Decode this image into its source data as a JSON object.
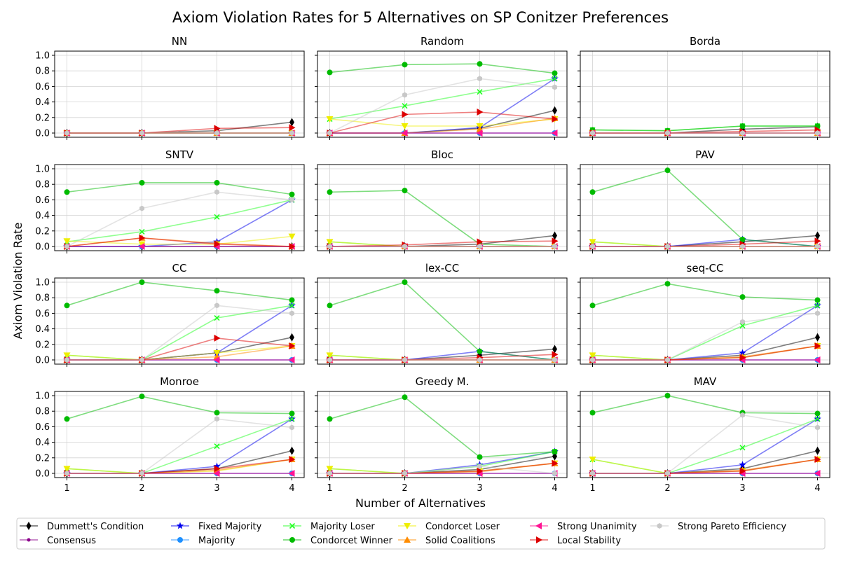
{
  "figure": {
    "title": "Axiom Violation Rates for 5 Alternatives on SP Conitzer Preferences",
    "xlabel": "Number of Alternatives",
    "ylabel": "Axiom Violation Rate"
  },
  "chart_data": {
    "type": "line",
    "x": [
      1,
      2,
      3,
      4
    ],
    "ylim": [
      0,
      1.0
    ],
    "yticks": [
      "0.0",
      "0.2",
      "0.4",
      "0.6",
      "0.8",
      "1.0"
    ],
    "xticks": [
      "1",
      "2",
      "3",
      "4"
    ],
    "grid": true,
    "legend_position": "bottom",
    "series_styles": [
      {
        "name": "Dummett's Condition",
        "color": "#000000",
        "marker": "diamond"
      },
      {
        "name": "Consensus",
        "color": "#8B008B",
        "marker": "dot"
      },
      {
        "name": "Fixed Majority",
        "color": "#0000EE",
        "marker": "star"
      },
      {
        "name": "Majority",
        "color": "#1E90FF",
        "marker": "circle"
      },
      {
        "name": "Majority Loser",
        "color": "#22FF22",
        "marker": "x"
      },
      {
        "name": "Condorcet Winner",
        "color": "#00BB00",
        "marker": "circle"
      },
      {
        "name": "Condorcet Loser",
        "color": "#EEEE00",
        "marker": "triangle-down"
      },
      {
        "name": "Solid Coalitions",
        "color": "#FF8C00",
        "marker": "triangle-up"
      },
      {
        "name": "Strong Unanimity",
        "color": "#FF1493",
        "marker": "triangle-left"
      },
      {
        "name": "Local Stability",
        "color": "#DD0000",
        "marker": "triangle-right"
      },
      {
        "name": "Strong Pareto Efficiency",
        "color": "#C8C8C8",
        "marker": "hexagon"
      }
    ],
    "panels": [
      {
        "title": "NN",
        "series": [
          [
            0,
            0,
            0.03,
            0.14
          ],
          [
            0,
            0,
            0,
            0
          ],
          [
            0,
            0,
            0,
            0
          ],
          [
            0,
            0,
            0,
            0
          ],
          [
            0,
            0,
            0,
            0
          ],
          [
            0,
            0,
            0,
            0
          ],
          [
            0,
            0,
            0,
            0
          ],
          [
            0,
            0,
            0,
            0
          ],
          [
            0,
            0,
            0,
            0
          ],
          [
            0,
            0,
            0.06,
            0.07
          ],
          [
            0,
            0,
            0,
            0
          ]
        ]
      },
      {
        "title": "Random",
        "series": [
          [
            0,
            0,
            0.06,
            0.29
          ],
          [
            0,
            0,
            0,
            0
          ],
          [
            0,
            0,
            0.07,
            0.7
          ],
          [
            0,
            0,
            0,
            0
          ],
          [
            0.18,
            0.35,
            0.53,
            0.7
          ],
          [
            0.78,
            0.88,
            0.89,
            0.77
          ],
          [
            0.18,
            0.09,
            0.09,
            0.18
          ],
          [
            0,
            0,
            0.05,
            0.19
          ],
          [
            0,
            0,
            0,
            0
          ],
          [
            0,
            0.24,
            0.27,
            0.18
          ],
          [
            0,
            0.49,
            0.7,
            0.59
          ]
        ]
      },
      {
        "title": "Borda",
        "series": [
          [
            0,
            0,
            0.05,
            0.08
          ],
          [
            0,
            0,
            0,
            0
          ],
          [
            0,
            0,
            0,
            0
          ],
          [
            0,
            0,
            0,
            0
          ],
          [
            0.04,
            0.03,
            0.09,
            0.09
          ],
          [
            0.04,
            0.03,
            0.09,
            0.09
          ],
          [
            0,
            0,
            0,
            0
          ],
          [
            0,
            0,
            0,
            0
          ],
          [
            0,
            0,
            0,
            0
          ],
          [
            0,
            0,
            0.02,
            0.04
          ],
          [
            0,
            0,
            0,
            0
          ]
        ]
      },
      {
        "title": "SNTV",
        "series": [
          [
            0,
            0,
            0,
            0
          ],
          [
            0,
            0,
            0,
            0
          ],
          [
            0,
            0,
            0.06,
            0.6
          ],
          [
            0,
            0,
            0,
            0
          ],
          [
            0.06,
            0.19,
            0.38,
            0.6
          ],
          [
            0.7,
            0.82,
            0.82,
            0.67
          ],
          [
            0.07,
            0.03,
            0.03,
            0.13
          ],
          [
            0,
            0.11,
            0.04,
            0
          ],
          [
            0,
            0,
            0,
            0
          ],
          [
            0,
            0.11,
            0.03,
            0
          ],
          [
            0,
            0.49,
            0.7,
            0.6
          ]
        ]
      },
      {
        "title": "Bloc",
        "series": [
          [
            0,
            0,
            0.03,
            0.14
          ],
          [
            0,
            0,
            0,
            0
          ],
          [
            0,
            0,
            0,
            0
          ],
          [
            0,
            0,
            0,
            0
          ],
          [
            0.06,
            0,
            0,
            0
          ],
          [
            0.7,
            0.72,
            0.03,
            0
          ],
          [
            0.06,
            0,
            0,
            0
          ],
          [
            0,
            0,
            0,
            0
          ],
          [
            0,
            0,
            0,
            0
          ],
          [
            0,
            0.02,
            0.06,
            0.07
          ],
          [
            0,
            0,
            0,
            0
          ]
        ]
      },
      {
        "title": "PAV",
        "series": [
          [
            0,
            0,
            0.06,
            0.14
          ],
          [
            0,
            0,
            0,
            0
          ],
          [
            0,
            0,
            0.09,
            0
          ],
          [
            0,
            0,
            0,
            0
          ],
          [
            0.06,
            0,
            0,
            0
          ],
          [
            0.7,
            0.98,
            0.09,
            0
          ],
          [
            0.06,
            0,
            0,
            0
          ],
          [
            0,
            0,
            0,
            0
          ],
          [
            0,
            0,
            0,
            0
          ],
          [
            0,
            0,
            0.03,
            0.07
          ],
          [
            0,
            0,
            0,
            0
          ]
        ]
      },
      {
        "title": "CC",
        "series": [
          [
            0,
            0,
            0.09,
            0.29
          ],
          [
            0,
            0,
            0,
            0
          ],
          [
            0,
            0,
            0.09,
            0.7
          ],
          [
            0,
            0,
            0,
            0
          ],
          [
            0.06,
            0,
            0.54,
            0.7
          ],
          [
            0.7,
            1.0,
            0.89,
            0.77
          ],
          [
            0.06,
            0,
            0.09,
            0.18
          ],
          [
            0,
            0,
            0.04,
            0.18
          ],
          [
            0,
            0,
            0,
            0
          ],
          [
            0,
            0,
            0.28,
            0.18
          ],
          [
            0,
            0,
            0.7,
            0.6
          ]
        ]
      },
      {
        "title": "lex-CC",
        "series": [
          [
            0,
            0,
            0.06,
            0.14
          ],
          [
            0,
            0,
            0,
            0
          ],
          [
            0,
            0,
            0.11,
            0
          ],
          [
            0,
            0,
            0,
            0
          ],
          [
            0.06,
            0,
            0,
            0
          ],
          [
            0.7,
            1.0,
            0.11,
            0
          ],
          [
            0.06,
            0,
            0,
            0
          ],
          [
            0,
            0,
            0,
            0
          ],
          [
            0,
            0,
            0,
            0
          ],
          [
            0,
            0,
            0.03,
            0.07
          ],
          [
            0,
            0,
            0,
            0
          ]
        ]
      },
      {
        "title": "seq-CC",
        "series": [
          [
            0,
            0,
            0.06,
            0.29
          ],
          [
            0,
            0,
            0,
            0
          ],
          [
            0,
            0,
            0.09,
            0.7
          ],
          [
            0,
            0,
            0,
            0
          ],
          [
            0.06,
            0,
            0.44,
            0.7
          ],
          [
            0.7,
            0.98,
            0.81,
            0.77
          ],
          [
            0.06,
            0,
            0.03,
            0.18
          ],
          [
            0,
            0,
            0.04,
            0.18
          ],
          [
            0,
            0,
            0,
            0
          ],
          [
            0,
            0,
            0.03,
            0.18
          ],
          [
            0,
            0,
            0.49,
            0.6
          ]
        ]
      },
      {
        "title": "Monroe",
        "series": [
          [
            0,
            0,
            0.06,
            0.29
          ],
          [
            0,
            0,
            0,
            0
          ],
          [
            0,
            0,
            0.09,
            0.7
          ],
          [
            0,
            0,
            0,
            0
          ],
          [
            0.06,
            0,
            0.35,
            0.7
          ],
          [
            0.7,
            0.99,
            0.78,
            0.77
          ],
          [
            0.06,
            0,
            0.03,
            0.18
          ],
          [
            0,
            0,
            0.04,
            0.18
          ],
          [
            0,
            0,
            0,
            0
          ],
          [
            0,
            0,
            0.06,
            0.18
          ],
          [
            0,
            0,
            0.7,
            0.59
          ]
        ]
      },
      {
        "title": "Greedy M.",
        "series": [
          [
            0,
            0,
            0.05,
            0.22
          ],
          [
            0,
            0,
            0,
            0
          ],
          [
            0,
            0,
            0.11,
            0.28
          ],
          [
            0,
            0,
            0,
            0
          ],
          [
            0.06,
            0,
            0.09,
            0.28
          ],
          [
            0.7,
            0.98,
            0.21,
            0.28
          ],
          [
            0.06,
            0,
            0.03,
            0.13
          ],
          [
            0,
            0,
            0.02,
            0.13
          ],
          [
            0,
            0,
            0,
            0
          ],
          [
            0,
            0,
            0.03,
            0.13
          ],
          [
            0,
            0,
            0.09,
            0
          ]
        ]
      },
      {
        "title": "MAV",
        "series": [
          [
            0,
            0,
            0.06,
            0.29
          ],
          [
            0,
            0,
            0,
            0
          ],
          [
            0,
            0,
            0.11,
            0.7
          ],
          [
            0,
            0,
            0,
            0
          ],
          [
            0.18,
            0,
            0.33,
            0.7
          ],
          [
            0.78,
            1.0,
            0.78,
            0.77
          ],
          [
            0.18,
            0,
            0.03,
            0.18
          ],
          [
            0,
            0,
            0.04,
            0.18
          ],
          [
            0,
            0,
            0,
            0
          ],
          [
            0,
            0,
            0.03,
            0.18
          ],
          [
            0,
            0,
            0.75,
            0.59
          ]
        ]
      }
    ]
  }
}
